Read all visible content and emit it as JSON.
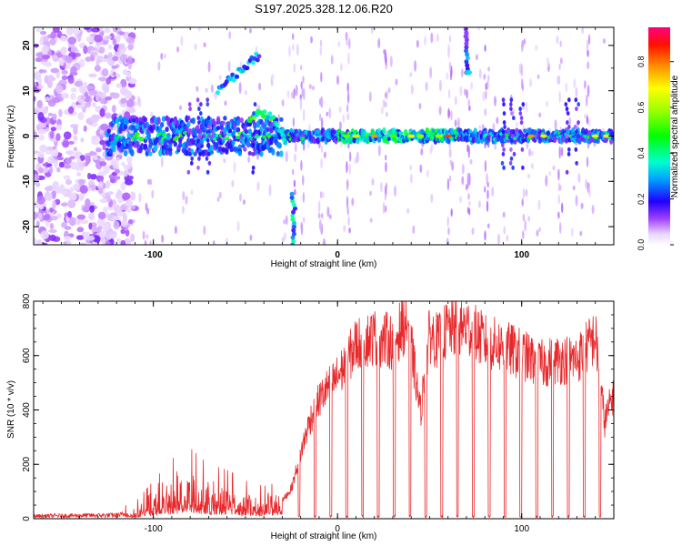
{
  "title": "S197.2025.328.12.06.R20",
  "chart_data": [
    {
      "type": "heatmap",
      "xlabel": "Height of straight line (km)",
      "ylabel": "Frequency (Hz)",
      "xlim": [
        -165,
        150
      ],
      "ylim": [
        -24,
        24
      ],
      "x_ticks": [
        -100,
        0,
        100
      ],
      "x_tick_labels": [
        "-100",
        "0",
        "100"
      ],
      "y_ticks": [
        -20,
        -10,
        0,
        10,
        20
      ],
      "y_tick_labels": [
        "-20",
        "-10",
        "0",
        "10",
        "20"
      ],
      "colorbar": {
        "label": "Normalized spectral amplitude",
        "range": [
          0,
          0.95
        ],
        "ticks": [
          0,
          0.2,
          0.4,
          0.6,
          0.8
        ],
        "tick_labels": [
          "0.0",
          "0.2",
          "0.4",
          "0.6",
          "0.8"
        ]
      },
      "features": [
        {
          "name": "main-band",
          "x": [
            -125,
            150
          ],
          "freq": 0
        },
        {
          "name": "rising-band",
          "x": [
            -65,
            -42
          ],
          "freq_start": 10,
          "freq_end": 18
        },
        {
          "name": "arc-band",
          "x": [
            -48,
            -28
          ],
          "freq_peak": 5
        },
        {
          "name": "low-streak",
          "x": [
            -26,
            -22
          ],
          "freq": [
            -24,
            -12
          ]
        },
        {
          "name": "high-streak",
          "x": [
            68,
            72
          ],
          "freq": [
            14,
            24
          ]
        }
      ]
    },
    {
      "type": "line",
      "xlabel": "Height of straight line (km)",
      "ylabel": "SNR (10 * v/v)",
      "xlim": [
        -165,
        150
      ],
      "ylim": [
        0,
        800
      ],
      "x_ticks": [
        -100,
        0,
        100
      ],
      "x_tick_labels": [
        "-100",
        "0",
        "100"
      ],
      "y_ticks": [
        0,
        200,
        400,
        600,
        800
      ],
      "y_tick_labels": [
        "0",
        "200",
        "400",
        "600",
        "800"
      ],
      "color": "#e8282b",
      "envelope": {
        "x": [
          -165,
          -140,
          -120,
          -110,
          -100,
          -90,
          -80,
          -70,
          -60,
          -50,
          -40,
          -30,
          -25,
          -20,
          -15,
          -10,
          -5,
          0,
          5,
          10,
          20,
          30,
          38,
          45,
          50,
          55,
          60,
          70,
          80,
          90,
          100,
          110,
          120,
          130,
          140,
          145,
          150
        ],
        "snr": [
          15,
          18,
          20,
          30,
          70,
          110,
          130,
          100,
          90,
          70,
          60,
          70,
          120,
          260,
          390,
          470,
          520,
          560,
          620,
          690,
          720,
          700,
          790,
          420,
          730,
          700,
          750,
          760,
          700,
          680,
          650,
          610,
          630,
          630,
          720,
          380,
          500
        ]
      }
    }
  ]
}
